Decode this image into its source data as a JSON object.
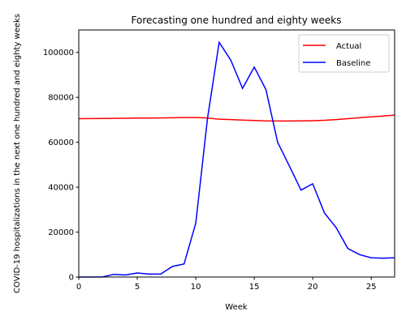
{
  "chart_data": {
    "type": "line",
    "title": "Forecasting one hundred and eighty weeks",
    "xlabel": "Week",
    "ylabel": "COVID-19 hospitalizations in the next one hundred and eighty weeks",
    "xlim": [
      0,
      27
    ],
    "ylim": [
      0,
      110000
    ],
    "x_ticks": [
      0,
      5,
      10,
      15,
      20,
      25
    ],
    "y_ticks": [
      0,
      20000,
      40000,
      60000,
      80000,
      100000
    ],
    "grid": false,
    "legend_position": "top-right",
    "x": [
      0,
      1,
      2,
      3,
      4,
      5,
      6,
      7,
      8,
      9,
      10,
      11,
      12,
      13,
      14,
      15,
      16,
      17,
      18,
      19,
      20,
      21,
      22,
      23,
      24,
      25,
      26,
      27
    ],
    "series": [
      {
        "name": "Actual",
        "color": "#ff0000",
        "values": [
          70500,
          70550,
          70600,
          70650,
          70700,
          70750,
          70800,
          70850,
          70900,
          71000,
          71000,
          70800,
          70300,
          70100,
          69900,
          69700,
          69500,
          69450,
          69450,
          69500,
          69600,
          69800,
          70100,
          70500,
          70900,
          71300,
          71700,
          72100
        ]
      },
      {
        "name": "Baseline",
        "color": "#0000ff",
        "values": [
          0,
          0,
          0,
          1200,
          900,
          1800,
          1300,
          1300,
          4700,
          5800,
          24000,
          70500,
          104500,
          96500,
          84000,
          93500,
          83500,
          60000,
          49500,
          38700,
          41500,
          28500,
          22000,
          12700,
          10000,
          8600,
          8400,
          8600
        ]
      }
    ]
  }
}
